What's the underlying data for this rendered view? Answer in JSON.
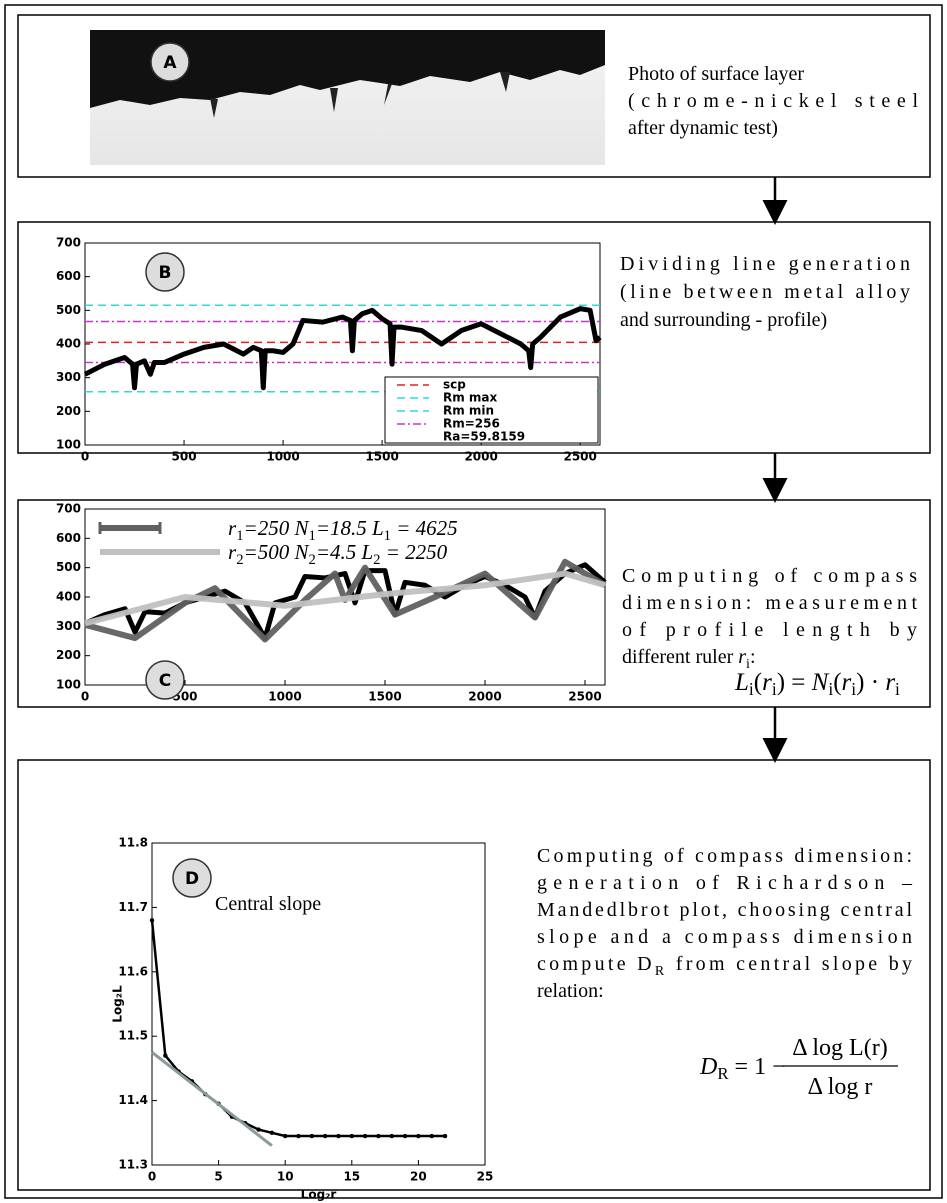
{
  "panels": [
    {
      "label": "A",
      "text": [
        "Photo of surface layer",
        "(chrome-nickel steel",
        "after dynamic test)"
      ]
    },
    {
      "label": "B",
      "text": [
        "Dividing line generation",
        "(line between metal alloy",
        "and surrounding - profile)"
      ],
      "chart": {
        "type": "line",
        "xlim": [
          0,
          2600
        ],
        "xticks": [
          0,
          500,
          1000,
          1500,
          2000,
          2500
        ],
        "ylim": [
          100,
          700
        ],
        "yticks": [
          100,
          200,
          300,
          400,
          500,
          600,
          700
        ],
        "profile": {
          "color": "#000000",
          "x": [
            0,
            100,
            200,
            240,
            250,
            260,
            300,
            330,
            350,
            400,
            500,
            600,
            700,
            800,
            850,
            890,
            900,
            910,
            950,
            1000,
            1050,
            1100,
            1200,
            1300,
            1340,
            1350,
            1360,
            1400,
            1450,
            1500,
            1540,
            1550,
            1560,
            1600,
            1700,
            1800,
            1900,
            2000,
            2100,
            2200,
            2240,
            2250,
            2260,
            2300,
            2400,
            2500,
            2550,
            2580,
            2600
          ],
          "y": [
            310,
            340,
            360,
            340,
            270,
            340,
            350,
            310,
            345,
            345,
            370,
            390,
            400,
            370,
            390,
            380,
            270,
            380,
            380,
            375,
            400,
            470,
            465,
            480,
            470,
            380,
            470,
            490,
            500,
            475,
            460,
            340,
            450,
            450,
            440,
            400,
            440,
            460,
            430,
            400,
            380,
            330,
            400,
            420,
            480,
            505,
            500,
            410,
            420
          ]
        },
        "series": [
          {
            "name": "scp",
            "color": "#e02020",
            "dash": "8 5",
            "y": [
              405
            ]
          },
          {
            "name": "Rm max",
            "color": "#30d8d8",
            "dash": "8 5",
            "y": [
              515
            ]
          },
          {
            "name": "Rm min",
            "color": "#30d8d8",
            "dash": "8 5",
            "y": [
              258
            ]
          },
          {
            "name": "Rm=256",
            "color": "#d030d0",
            "dash": "8 3 2 3",
            "y": [
              467,
              345
            ]
          }
        ],
        "legend_note": "Ra=59.8159"
      }
    },
    {
      "label": "C",
      "text": [
        "Computing of compass",
        "dimension: measurement",
        "of profile length by",
        [
          "different ruler ",
          {
            "i": "r"
          },
          {
            "sub": "i"
          },
          ":"
        ]
      ],
      "formula": [
        {
          "i": "L"
        },
        {
          "sub": "i"
        },
        "(",
        {
          "i": "r"
        },
        {
          "sub": "i"
        },
        ") = ",
        {
          "i": "N"
        },
        {
          "sub": "i"
        },
        "(",
        {
          "i": "r"
        },
        {
          "sub": "i"
        },
        ") · ",
        {
          "i": "r"
        },
        {
          "sub": "i"
        }
      ],
      "chart": {
        "type": "line",
        "xlim": [
          0,
          2600
        ],
        "xticks": [
          0,
          500,
          1000,
          1500,
          2000,
          2500
        ],
        "ylim": [
          100,
          700
        ],
        "yticks": [
          100,
          200,
          300,
          400,
          500,
          600,
          700
        ],
        "profile": {
          "color": "#000000",
          "x": [
            0,
            100,
            200,
            250,
            300,
            400,
            500,
            600,
            700,
            800,
            900,
            950,
            1050,
            1100,
            1200,
            1300,
            1350,
            1400,
            1500,
            1550,
            1600,
            1700,
            1800,
            1900,
            2000,
            2100,
            2200,
            2250,
            2300,
            2400,
            2500,
            2600
          ],
          "y": [
            310,
            340,
            360,
            280,
            350,
            345,
            380,
            400,
            420,
            380,
            260,
            380,
            400,
            470,
            465,
            480,
            380,
            490,
            490,
            340,
            450,
            440,
            400,
            440,
            470,
            440,
            400,
            330,
            420,
            480,
            510,
            450
          ]
        },
        "rulers": [
          {
            "color": "#606060",
            "width": 6,
            "x": [
              0,
              250,
              500,
              650,
              900,
              1100,
              1250,
              1300,
              1400,
              1550,
              1750,
              2000,
              2250,
              2400,
              2600
            ],
            "y": [
              305,
              260,
              380,
              430,
              255,
              390,
              480,
              390,
              500,
              340,
              400,
              480,
              330,
              520,
              440
            ]
          },
          {
            "color": "#c0c0c0",
            "width": 6,
            "x": [
              0,
              500,
              1000,
              1500,
              2000,
              2400,
              2600
            ],
            "y": [
              310,
              400,
              370,
              410,
              440,
              480,
              440
            ]
          }
        ],
        "legend": [
          [
            {
              "i": "r"
            },
            {
              "sub": "1"
            },
            {
              "i": "=250  N"
            },
            {
              "sub": "1"
            },
            {
              "i": "=18.5  L"
            },
            {
              "sub": "1"
            },
            {
              "i": " = 4625"
            }
          ],
          [
            {
              "i": "r"
            },
            {
              "sub": "2"
            },
            {
              "i": "=500  N"
            },
            {
              "sub": "2"
            },
            {
              "i": "=4.5  L"
            },
            {
              "sub": "2"
            },
            {
              "i": " = 2250"
            }
          ]
        ]
      }
    },
    {
      "label": "D",
      "text": [
        "Computing of compass dimension:",
        "generation of Richardson –",
        "Mandedlbrot plot, choosing central",
        "slope and a compass dimension",
        [
          "compute D",
          {
            "sub": "R"
          },
          " from central slope by"
        ],
        "relation:"
      ],
      "formula": {
        "lhs": [
          {
            "i": "D"
          },
          {
            "sub": "R"
          },
          " = 1 −"
        ],
        "num": "Δ log L(r)",
        "den": "Δ log r"
      },
      "chart": {
        "type": "line",
        "xlim": [
          0,
          25
        ],
        "xticks": [
          0,
          5,
          10,
          15,
          20,
          25
        ],
        "ylim": [
          11.3,
          11.8
        ],
        "yticks": [
          11.3,
          11.4,
          11.5,
          11.6,
          11.7,
          11.8
        ],
        "xlabel": "Log₂r",
        "ylabel": "Log₂L",
        "profile": {
          "color": "#000000",
          "x": [
            0,
            1,
            2,
            3,
            4,
            5,
            6,
            7,
            8,
            9,
            10,
            11,
            12,
            13,
            14,
            15,
            16,
            17,
            18,
            19,
            20,
            21,
            22
          ],
          "y": [
            11.68,
            11.47,
            11.445,
            11.43,
            11.41,
            11.395,
            11.375,
            11.365,
            11.355,
            11.35,
            11.345,
            11.345,
            11.345,
            11.345,
            11.345,
            11.345,
            11.345,
            11.345,
            11.345,
            11.345,
            11.345,
            11.345,
            11.345
          ]
        },
        "slope": {
          "color": "#8a9a9a",
          "x": [
            0,
            9
          ],
          "y": [
            11.475,
            11.33
          ]
        },
        "annotation": "Central slope"
      }
    }
  ]
}
